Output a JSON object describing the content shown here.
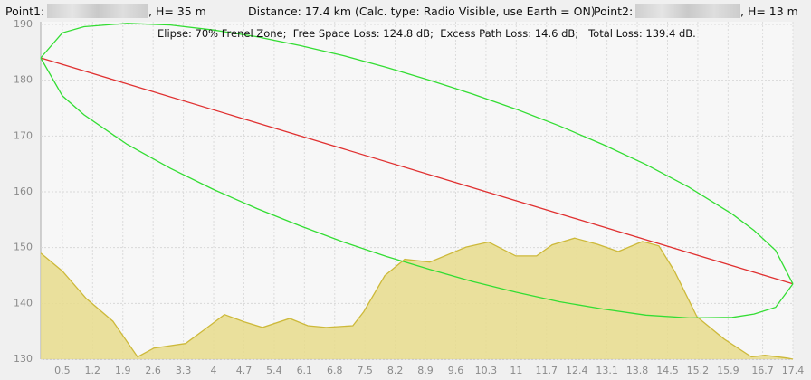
{
  "chart_data": {
    "type": "line",
    "point1_label": "Point1:",
    "point1_height": ", H= 35 m",
    "distance": "Distance: 17.4 km (Calc. type: Radio Visible, use Earth = ON)",
    "point2_label": "Point2:",
    "point2_height": ", H= 13 m",
    "subtitle": "Elipse: 70% Frenel Zone;  Free Space Loss: 124.8 dB;  Excess Path Loss: 14.6 dB;   Total Loss: 139.4 dB.",
    "xlim": [
      0,
      17.4
    ],
    "ylim": [
      130,
      190
    ],
    "xticks": [
      0.5,
      1.2,
      1.9,
      2.6,
      3.3,
      4,
      4.7,
      5.4,
      6.1,
      6.8,
      7.5,
      8.2,
      8.9,
      9.6,
      10.3,
      11,
      11.7,
      12.4,
      13.1,
      13.8,
      14.5,
      15.2,
      15.9,
      16.7,
      17.4
    ],
    "yticks": [
      130,
      140,
      150,
      160,
      170,
      180,
      190
    ],
    "grid": true,
    "series": [
      {
        "color": "#cdb93a",
        "fill": "#e8dc8c",
        "x": [
          0,
          0.5,
          1.05,
          1.67,
          2.24,
          2.62,
          3.35,
          3.77,
          4.25,
          4.71,
          5.13,
          5.76,
          6.18,
          6.6,
          7.22,
          7.47,
          7.96,
          8.42,
          9.0,
          9.84,
          10.36,
          10.99,
          11.47,
          11.83,
          12.35,
          12.88,
          13.36,
          13.92,
          14.3,
          14.66,
          15.18,
          15.81,
          16.44,
          16.75,
          17.27,
          17.4
        ],
        "values": [
          149,
          145.8,
          140.9,
          136.8,
          130.4,
          132,
          132.8,
          135.2,
          138,
          136.7,
          135.7,
          137.3,
          136,
          135.7,
          136,
          138.5,
          145,
          147.9,
          147.4,
          150.1,
          151,
          148.5,
          148.5,
          150.5,
          151.7,
          150.6,
          149.3,
          151.1,
          150.3,
          145.8,
          137.6,
          133.6,
          130.4,
          130.7,
          130.2,
          130
        ]
      },
      {
        "color": "#e03030",
        "x": [
          0,
          17.4
        ],
        "values": [
          184,
          143.5
        ]
      },
      {
        "color": "#33dd33",
        "x": [
          0,
          0.5,
          1,
          2,
          3,
          4,
          5,
          6,
          7,
          8,
          9,
          10,
          11,
          12,
          13,
          14,
          15,
          16,
          16.5,
          17,
          17.4
        ],
        "values": [
          184,
          188.5,
          189.6,
          190.2,
          189.9,
          189.0,
          187.8,
          186.2,
          184.4,
          182.3,
          180.0,
          177.5,
          174.8,
          171.8,
          168.5,
          164.9,
          160.8,
          156.0,
          153.1,
          149.5,
          143.5
        ]
      },
      {
        "color": "#33dd33",
        "x": [
          0,
          0.5,
          1,
          2,
          3,
          4,
          5,
          6,
          7,
          8,
          9,
          10,
          11,
          12,
          13,
          14,
          15,
          16,
          16.5,
          17,
          17.4
        ],
        "values": [
          184,
          177.2,
          173.8,
          168.5,
          164.2,
          160.4,
          157.0,
          153.9,
          151.0,
          148.4,
          146.1,
          143.9,
          142.0,
          140.3,
          139.0,
          137.9,
          137.4,
          137.5,
          138.1,
          139.3,
          143.5
        ]
      }
    ]
  }
}
